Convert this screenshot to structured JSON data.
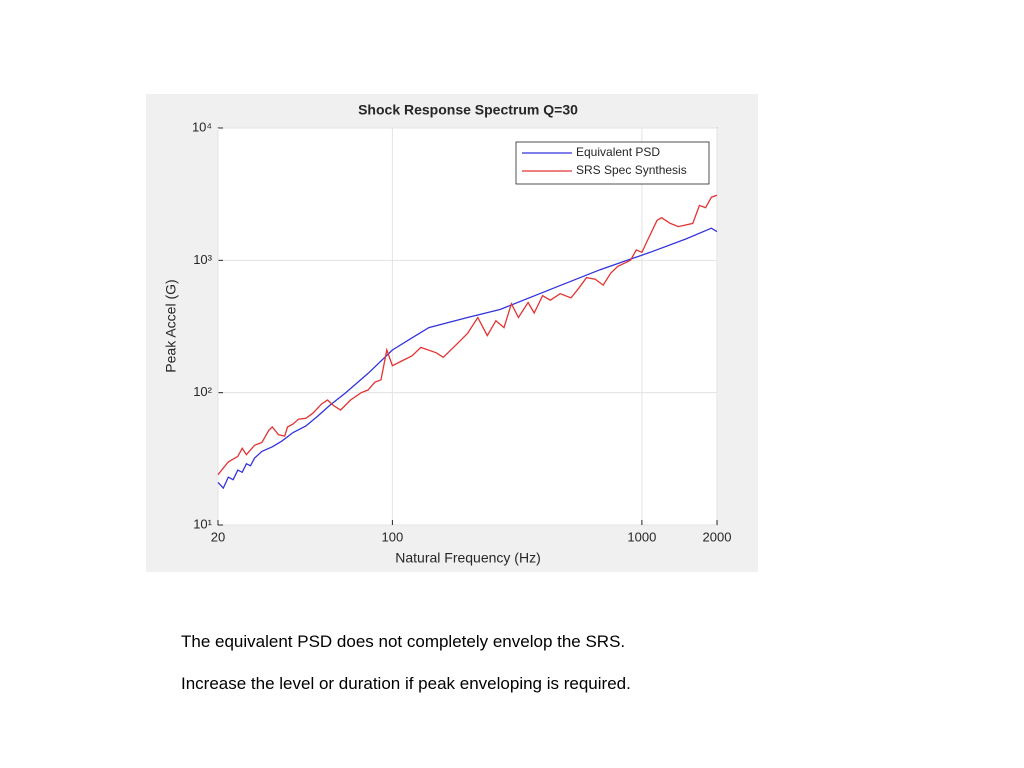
{
  "chart_data": {
    "type": "line",
    "title": "Shock Response Spectrum Q=30",
    "xlabel": "Natural Frequency (Hz)",
    "ylabel": "Peak Accel (G)",
    "xscale": "log",
    "yscale": "log",
    "grid": true,
    "legend": "upper right",
    "xlim": [
      20,
      2000
    ],
    "ylim": [
      10,
      10000
    ],
    "xticks": [
      20,
      100,
      1000,
      2000
    ],
    "yticks": [
      {
        "value": 10,
        "label": "10¹"
      },
      {
        "value": 100,
        "label": "10²"
      },
      {
        "value": 1000,
        "label": "10³"
      },
      {
        "value": 10000,
        "label": "10⁴"
      }
    ],
    "series": [
      {
        "name": "Equivalent PSD",
        "color": "#3333dd",
        "x": [
          20,
          21,
          22,
          23,
          24,
          25,
          26,
          27,
          28,
          30,
          33,
          36,
          40,
          45,
          50,
          56,
          65,
          80,
          100,
          120,
          140,
          200,
          270,
          427,
          680,
          1080,
          1500,
          1900,
          2000
        ],
        "values": [
          21,
          19,
          23,
          22,
          26,
          25,
          29,
          28,
          32,
          36,
          39,
          43,
          50,
          56,
          66,
          80,
          100,
          140,
          210,
          260,
          310,
          370,
          425,
          600,
          850,
          1150,
          1450,
          1750,
          1650
        ]
      },
      {
        "name": "SRS Spec Synthesis",
        "color": "#e33333",
        "x": [
          20,
          22,
          24,
          25,
          26,
          28,
          30,
          32,
          33,
          35,
          37,
          38,
          40,
          42,
          45,
          48,
          52,
          55,
          58,
          62,
          68,
          75,
          80,
          85,
          90,
          95,
          100,
          110,
          120,
          130,
          150,
          160,
          180,
          200,
          220,
          240,
          260,
          280,
          300,
          320,
          350,
          370,
          400,
          430,
          470,
          520,
          560,
          600,
          650,
          700,
          750,
          800,
          900,
          950,
          1000,
          1050,
          1150,
          1200,
          1300,
          1400,
          1600,
          1700,
          1800,
          1900,
          2000
        ],
        "values": [
          24,
          30,
          33,
          38,
          34,
          40,
          42,
          52,
          55,
          48,
          47,
          55,
          58,
          63,
          64,
          70,
          82,
          88,
          80,
          74,
          88,
          100,
          105,
          120,
          125,
          210,
          160,
          175,
          190,
          220,
          200,
          185,
          230,
          280,
          370,
          270,
          350,
          310,
          470,
          370,
          480,
          400,
          540,
          500,
          560,
          520,
          620,
          740,
          720,
          650,
          800,
          900,
          1000,
          1200,
          1150,
          1400,
          2000,
          2100,
          1900,
          1800,
          1900,
          2600,
          2500,
          3000,
          3100
        ]
      }
    ]
  },
  "captions": [
    "The equivalent PSD does not completely envelop the SRS.",
    "Increase the level or duration if peak enveloping is required."
  ]
}
